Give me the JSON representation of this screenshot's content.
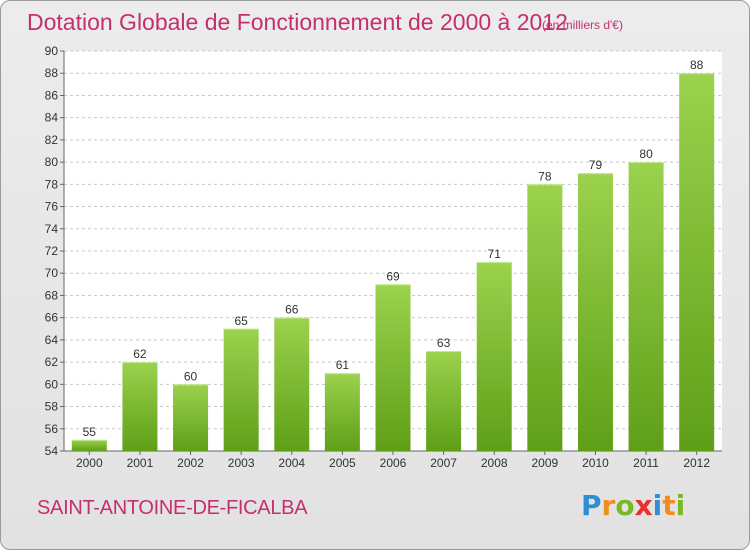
{
  "chart_data": {
    "type": "bar",
    "title": "Dotation Globale de Fonctionnement de 2000 à 2012",
    "subtitle": "(en milliers d'€)",
    "categories": [
      "2000",
      "2001",
      "2002",
      "2003",
      "2004",
      "2005",
      "2006",
      "2007",
      "2008",
      "2009",
      "2010",
      "2011",
      "2012"
    ],
    "values": [
      55,
      62,
      60,
      65,
      66,
      61,
      69,
      63,
      71,
      78,
      79,
      80,
      88
    ],
    "ylim": [
      54,
      90
    ],
    "yticks": [
      54,
      56,
      58,
      60,
      62,
      64,
      66,
      68,
      70,
      72,
      74,
      76,
      78,
      80,
      82,
      84,
      86,
      88,
      90
    ],
    "grid": true,
    "bar_color": "#7fbf2f"
  },
  "footer": {
    "commune": "SAINT-ANTOINE-DE-FICALBA",
    "logo": [
      "P",
      "r",
      "o",
      "x",
      "i",
      "t",
      "i"
    ],
    "logo_colors": [
      "#2f8fd6",
      "#f28c1e",
      "#79b928",
      "#e8312f",
      "#2f8fd6",
      "#f28c1e",
      "#79b928"
    ]
  }
}
